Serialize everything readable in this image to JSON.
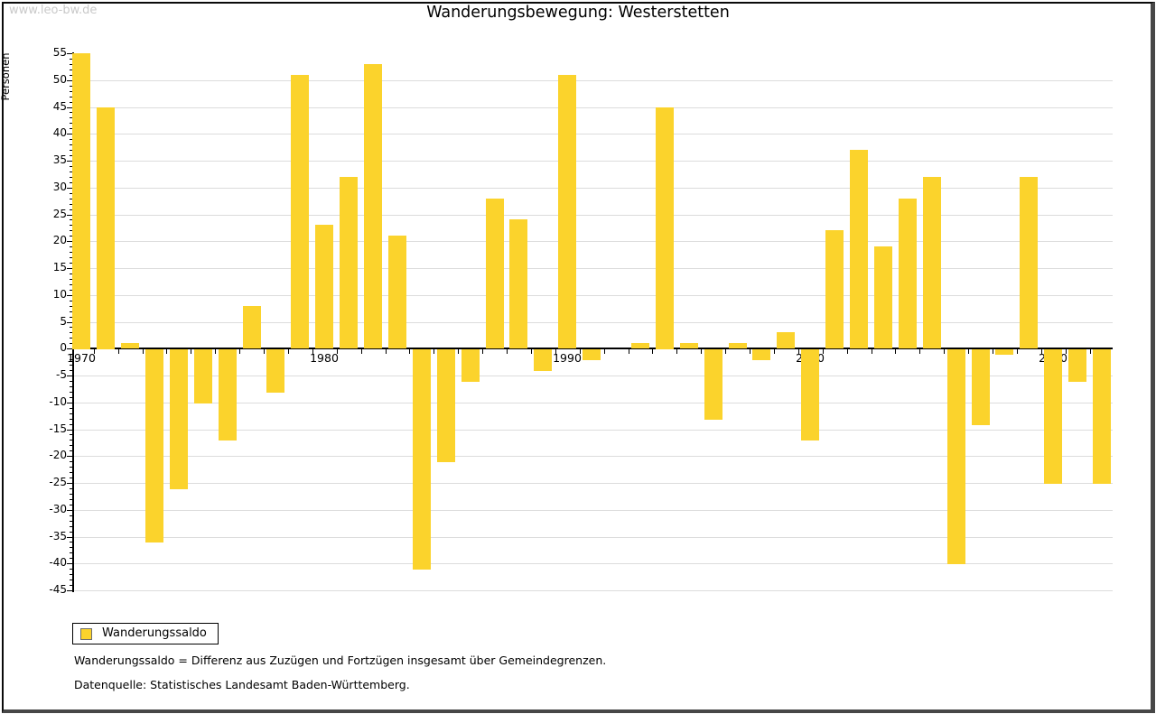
{
  "watermark": "www.leo-bw.de",
  "title": "Wanderungsbewegung: Westerstetten",
  "colors": {
    "bar": "#fbd32c",
    "bar_border": "#6e6e6e",
    "gridline": "#dcdcdc",
    "axis": "#000000",
    "watermark": "#c9c9c9"
  },
  "chart_data": {
    "type": "bar",
    "title": "Wanderungsbewegung: Westerstetten",
    "xlabel": "",
    "ylabel": "Personen",
    "ylim": [
      -45,
      55
    ],
    "ytick_step": 5,
    "y_minor_tick_step": 1,
    "x_major_ticks": [
      1970,
      1980,
      1990,
      2000,
      2010
    ],
    "x_minor_tick_step": 1,
    "grid": true,
    "legend_position": "bottom-left",
    "x": [
      1970,
      1971,
      1972,
      1973,
      1974,
      1975,
      1976,
      1977,
      1978,
      1979,
      1980,
      1981,
      1982,
      1983,
      1984,
      1985,
      1986,
      1987,
      1988,
      1989,
      1990,
      1991,
      1992,
      1993,
      1994,
      1995,
      1996,
      1997,
      1998,
      1999,
      2000,
      2001,
      2002,
      2003,
      2004,
      2005,
      2006,
      2007,
      2008,
      2009,
      2010,
      2011,
      2012
    ],
    "series": [
      {
        "name": "Wanderungssaldo",
        "values": [
          55,
          45,
          1,
          -36,
          -26,
          -10,
          -17,
          8,
          -8,
          51,
          23,
          32,
          53,
          21,
          -41,
          -21,
          -6,
          28,
          24,
          -4,
          51,
          -2,
          0,
          1,
          45,
          1,
          -13,
          1,
          -2,
          3,
          -17,
          22,
          37,
          19,
          28,
          32,
          -40,
          -14,
          -1,
          32,
          -25,
          -6,
          -25
        ]
      }
    ]
  },
  "legend": {
    "label": "Wanderungssaldo"
  },
  "footnotes": [
    "Wanderungssaldo = Differenz aus Zuzügen und Fortzügen insgesamt über Gemeindegrenzen.",
    "Datenquelle: Statistisches Landesamt Baden-Württemberg."
  ]
}
